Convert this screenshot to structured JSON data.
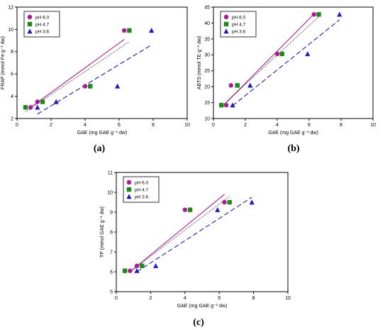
{
  "chart_data": [
    {
      "type": "scatter",
      "panel_label": "(a)",
      "title": "",
      "xlabel": "GAE (mg GAE g⁻¹ dw)",
      "ylabel": "FRAP (mmol Fe g⁻¹ dw)",
      "xlim": [
        0,
        10
      ],
      "ylim": [
        2,
        12
      ],
      "xticks": [
        "0",
        "2",
        "4",
        "6",
        "8",
        "10"
      ],
      "yticks": [
        "2",
        "4",
        "6",
        "8",
        "10",
        "12"
      ],
      "legend_position": "top-left",
      "series": [
        {
          "name": "pH 6.0",
          "color": "#b0159a",
          "marker": "circle",
          "line_style": "solid",
          "x": [
            0.8,
            1.2,
            4.0,
            6.3
          ],
          "y": [
            3.0,
            3.5,
            4.9,
            9.9
          ],
          "fit": [
            [
              0.8,
              3.0
            ],
            [
              6.3,
              9.1
            ]
          ]
        },
        {
          "name": "pH 4.7",
          "color": "#1a8a1a",
          "marker": "square",
          "line_style": "dotted",
          "x": [
            0.5,
            1.5,
            4.3,
            6.6
          ],
          "y": [
            3.0,
            3.5,
            4.9,
            9.9
          ],
          "fit": [
            [
              0.5,
              2.6
            ],
            [
              6.6,
              8.9
            ]
          ]
        },
        {
          "name": "pH 3.6",
          "color": "#1c1cc4",
          "marker": "triangle",
          "line_style": "dashed",
          "x": [
            1.2,
            2.3,
            5.9,
            7.9
          ],
          "y": [
            3.0,
            3.5,
            4.9,
            9.9
          ],
          "fit": [
            [
              1.2,
              2.4
            ],
            [
              7.9,
              8.6
            ]
          ]
        }
      ]
    },
    {
      "type": "scatter",
      "panel_label": "(b)",
      "title": "",
      "xlabel": "GAE (mg GAE g⁻¹ dw)",
      "ylabel": "ABTS (mmol TE g⁻¹ dw)",
      "xlim": [
        0,
        10
      ],
      "ylim": [
        10,
        45
      ],
      "xticks": [
        "0",
        "2",
        "4",
        "6",
        "8",
        "10"
      ],
      "yticks": [
        "10",
        "15",
        "20",
        "25",
        "30",
        "35",
        "40",
        "45"
      ],
      "legend_position": "top-left",
      "series": [
        {
          "name": "pH 6.0",
          "color": "#b0159a",
          "marker": "circle",
          "line_style": "solid",
          "x": [
            0.8,
            1.1,
            4.0,
            6.3
          ],
          "y": [
            14.2,
            20.4,
            30.3,
            42.7
          ],
          "fit": [
            [
              0.8,
              15.0
            ],
            [
              6.3,
              42.8
            ]
          ]
        },
        {
          "name": "pH 4.7",
          "color": "#1a8a1a",
          "marker": "square",
          "line_style": "dotted",
          "x": [
            0.5,
            1.5,
            4.3,
            6.6
          ],
          "y": [
            14.2,
            20.4,
            30.3,
            42.7
          ],
          "fit": [
            [
              0.5,
              13.8
            ],
            [
              6.6,
              42.0
            ]
          ]
        },
        {
          "name": "pH 3.6",
          "color": "#1c1cc4",
          "marker": "triangle",
          "line_style": "dashed",
          "x": [
            1.2,
            2.3,
            5.9,
            7.9
          ],
          "y": [
            14.2,
            20.4,
            30.3,
            42.7
          ],
          "fit": [
            [
              1.2,
              14.0
            ],
            [
              7.9,
              41.0
            ]
          ]
        }
      ]
    },
    {
      "type": "scatter",
      "panel_label": "(c)",
      "title": "",
      "xlabel": "GAE (mg GAE g⁻¹ dw)",
      "ylabel": "TP (mmol GAE g⁻¹ dw)",
      "xlim": [
        0,
        10
      ],
      "ylim": [
        5,
        11
      ],
      "xticks": [
        "0",
        "2",
        "4",
        "6",
        "8",
        "10"
      ],
      "yticks": [
        "5",
        "6",
        "7",
        "8",
        "9",
        "10",
        "11"
      ],
      "legend_position": "top-left",
      "series": [
        {
          "name": "pH 6.0",
          "color": "#b0159a",
          "marker": "circle",
          "line_style": "solid",
          "x": [
            0.8,
            1.2,
            4.0,
            6.3
          ],
          "y": [
            6.05,
            6.3,
            9.12,
            9.5
          ],
          "fit": [
            [
              0.8,
              6.0
            ],
            [
              6.3,
              9.9
            ]
          ]
        },
        {
          "name": "pH 4.7",
          "color": "#1a8a1a",
          "marker": "square",
          "line_style": "dotted",
          "x": [
            0.5,
            1.5,
            4.3,
            6.6
          ],
          "y": [
            6.05,
            6.3,
            9.12,
            9.5
          ],
          "fit": [
            [
              0.8,
              6.0
            ],
            [
              6.6,
              9.8
            ]
          ]
        },
        {
          "name": "pH 3.6",
          "color": "#1c1cc4",
          "marker": "triangle",
          "line_style": "dashed",
          "x": [
            1.2,
            2.3,
            5.9,
            7.9
          ],
          "y": [
            6.05,
            6.3,
            9.12,
            9.5
          ],
          "fit": [
            [
              1.2,
              6.0
            ],
            [
              7.9,
              9.75
            ]
          ]
        }
      ]
    }
  ]
}
